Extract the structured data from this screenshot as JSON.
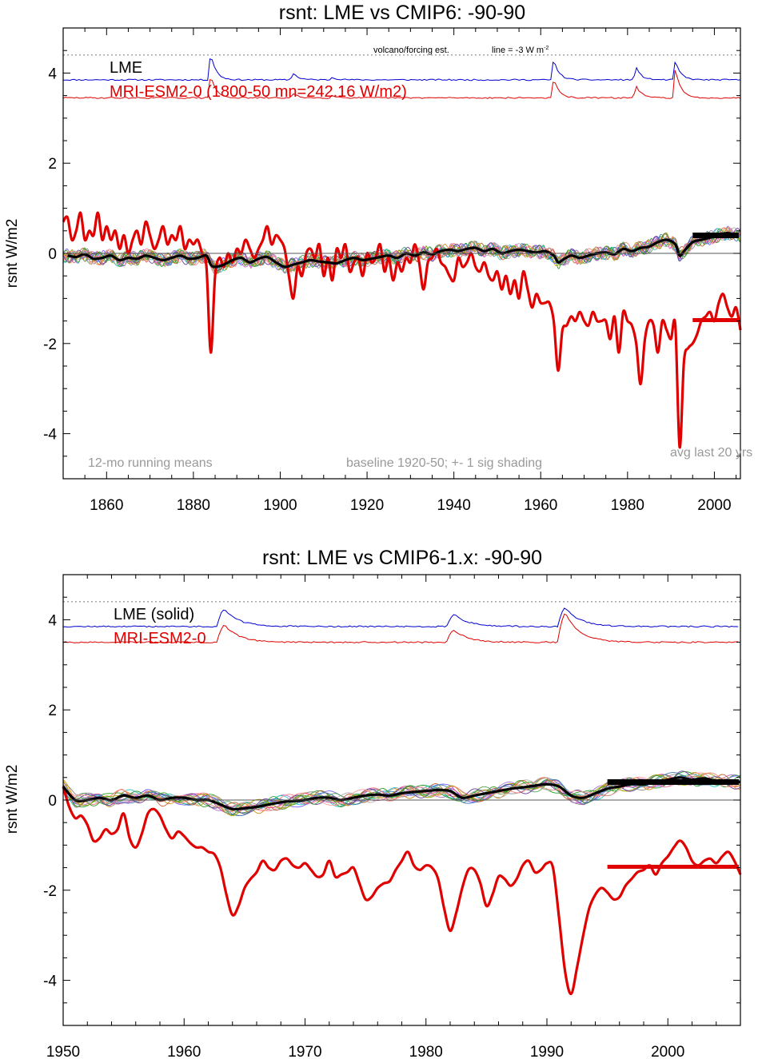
{
  "colors": {
    "lme": "#000000",
    "mri": "#e00000",
    "blue_forcing": "#0000d0",
    "red_forcing": "#e00000",
    "annotation_gray": "#999999",
    "zero_line": "#555555",
    "ensemble": [
      "#8a8a8a",
      "#1fa01f",
      "#b070d0",
      "#20c8c8",
      "#d09010",
      "#7060ff",
      "#e040a0",
      "#b0b0b0",
      "#50a050",
      "#c06030",
      "#4080c0",
      "#a0a000",
      "#ff7f7f",
      "#6a3d9a",
      "#33a02c",
      "#fb9a99",
      "#999999",
      "#e6c800",
      "#00a0a0",
      "#a05020"
    ]
  },
  "chart_data": [
    {
      "type": "line",
      "title": "rsnt: LME vs CMIP6: -90-90",
      "ylabel": "rsnt W/m2",
      "xlabel": "",
      "xlim": [
        1850,
        2006
      ],
      "ylim": [
        -5,
        5
      ],
      "xticks": [
        1860,
        1880,
        1900,
        1920,
        1940,
        1960,
        1980,
        2000
      ],
      "yticks": [
        -4,
        -2,
        0,
        2,
        4
      ],
      "grid": false,
      "legend": {
        "placement": "top-left",
        "entries": [
          "LME",
          "MRI-ESM2-0 (1800-50 mn=242.16 W/m2)"
        ]
      },
      "annotations": {
        "volcano": "volcano/forcing est.",
        "line_note": "line = -3 W m",
        "line_note_sup": "-2",
        "running_means": "12-mo running means",
        "baseline": "baseline 1920-50; +- 1 sig shading",
        "avg_last": "avg last 20 yrs"
      },
      "series": [
        {
          "name": "LME",
          "role": "ensemble-mean",
          "x": [
            1851,
            1853,
            1855,
            1857,
            1859,
            1861,
            1863,
            1865,
            1867,
            1869,
            1871,
            1873,
            1875,
            1877,
            1879,
            1881,
            1883,
            1884,
            1885,
            1887,
            1889,
            1891,
            1893,
            1895,
            1897,
            1899,
            1901,
            1903,
            1905,
            1907,
            1909,
            1911,
            1913,
            1915,
            1917,
            1919,
            1921,
            1923,
            1925,
            1927,
            1929,
            1931,
            1933,
            1935,
            1937,
            1939,
            1941,
            1943,
            1945,
            1947,
            1949,
            1951,
            1953,
            1955,
            1957,
            1959,
            1961,
            1963,
            1964,
            1965,
            1967,
            1969,
            1971,
            1973,
            1975,
            1977,
            1979,
            1981,
            1983,
            1985,
            1987,
            1989,
            1991,
            1992,
            1993,
            1995,
            1997,
            1999,
            2001,
            2003,
            2005
          ],
          "y": [
            -0.05,
            -0.08,
            -0.02,
            -0.12,
            -0.1,
            -0.05,
            -0.15,
            -0.1,
            -0.12,
            -0.05,
            -0.1,
            -0.15,
            -0.1,
            -0.05,
            -0.12,
            -0.1,
            -0.05,
            -0.25,
            -0.3,
            -0.25,
            -0.15,
            -0.1,
            -0.2,
            -0.12,
            -0.08,
            -0.2,
            -0.3,
            -0.25,
            -0.2,
            -0.15,
            -0.18,
            -0.2,
            -0.22,
            -0.15,
            -0.1,
            -0.15,
            -0.12,
            -0.08,
            -0.05,
            -0.1,
            0.0,
            -0.05,
            0.02,
            -0.02,
            0.05,
            0.08,
            0.05,
            0.1,
            0.12,
            0.05,
            0.1,
            0.0,
            0.05,
            0.08,
            0.05,
            0.02,
            0.05,
            -0.05,
            -0.2,
            -0.15,
            -0.05,
            -0.1,
            -0.05,
            0.0,
            0.02,
            -0.02,
            0.1,
            0.05,
            0.12,
            0.15,
            0.25,
            0.3,
            0.2,
            -0.05,
            0.05,
            0.25,
            0.3,
            0.35,
            0.4,
            0.45,
            0.4
          ]
        },
        {
          "name": "MRI-ESM2-0 (1800-50 mn=242.16 W/m2)",
          "role": "model",
          "x": [
            1850,
            1851,
            1852,
            1853,
            1854,
            1855,
            1856,
            1857,
            1858,
            1859,
            1860,
            1861,
            1862,
            1863,
            1864,
            1865,
            1866,
            1867,
            1868,
            1869,
            1870,
            1871,
            1872,
            1873,
            1874,
            1875,
            1876,
            1877,
            1878,
            1879,
            1880,
            1881,
            1882,
            1883,
            1884,
            1885,
            1886,
            1887,
            1888,
            1889,
            1890,
            1891,
            1892,
            1893,
            1894,
            1895,
            1896,
            1897,
            1898,
            1899,
            1900,
            1901,
            1902,
            1903,
            1904,
            1905,
            1906,
            1907,
            1908,
            1909,
            1910,
            1911,
            1912,
            1913,
            1914,
            1915,
            1916,
            1917,
            1918,
            1919,
            1920,
            1921,
            1922,
            1923,
            1924,
            1925,
            1926,
            1927,
            1928,
            1929,
            1930,
            1931,
            1932,
            1933,
            1934,
            1935,
            1936,
            1937,
            1938,
            1939,
            1940,
            1941,
            1942,
            1943,
            1944,
            1945,
            1946,
            1947,
            1948,
            1949,
            1950,
            1951,
            1952,
            1953,
            1954,
            1955,
            1956,
            1957,
            1958,
            1959,
            1960,
            1961,
            1962,
            1963,
            1964,
            1965,
            1966,
            1967,
            1968,
            1969,
            1970,
            1971,
            1972,
            1973,
            1974,
            1975,
            1976,
            1977,
            1978,
            1979,
            1980,
            1981,
            1982,
            1983,
            1984,
            1985,
            1986,
            1987,
            1988,
            1989,
            1990,
            1991,
            1992,
            1993,
            1994,
            1995,
            1996,
            1997,
            1998,
            1999,
            2000,
            2001,
            2002,
            2003,
            2004,
            2005,
            2006
          ],
          "y": [
            0.7,
            0.8,
            0.3,
            0.5,
            0.9,
            0.3,
            0.5,
            0.4,
            0.9,
            0.3,
            0.6,
            0.3,
            0.5,
            0.1,
            0.4,
            0.0,
            0.3,
            0.5,
            0.2,
            0.7,
            0.4,
            0.1,
            0.3,
            0.6,
            0.2,
            0.4,
            0.3,
            0.6,
            0.1,
            0.3,
            0.2,
            0.3,
            0.0,
            -0.3,
            -2.2,
            -0.5,
            -0.1,
            -0.3,
            0.0,
            -0.2,
            0.1,
            0.0,
            0.3,
            0.1,
            -0.1,
            0.1,
            0.3,
            0.6,
            0.2,
            0.4,
            0.3,
            0.1,
            -0.5,
            -1.0,
            -0.3,
            -0.5,
            0.0,
            0.1,
            -0.1,
            0.2,
            -0.5,
            -0.1,
            -0.6,
            0.1,
            -0.1,
            0.2,
            -0.4,
            -0.2,
            -0.1,
            -0.5,
            0.0,
            -0.2,
            -0.1,
            0.2,
            -0.4,
            -0.1,
            -0.6,
            -0.2,
            -0.4,
            -0.1,
            -0.2,
            0.2,
            -0.2,
            -0.8,
            -0.2,
            -0.1,
            0.1,
            -0.2,
            -0.3,
            -0.5,
            -0.6,
            -0.1,
            -0.3,
            -0.2,
            0.0,
            -0.3,
            -0.4,
            -0.2,
            -0.5,
            -0.6,
            -0.4,
            -0.8,
            -0.5,
            -0.9,
            -0.6,
            -1.0,
            -0.4,
            -0.8,
            -1.2,
            -0.9,
            -1.1,
            -1.1,
            -1.1,
            -1.5,
            -2.6,
            -1.7,
            -1.6,
            -1.4,
            -1.5,
            -1.3,
            -1.5,
            -1.6,
            -1.3,
            -1.5,
            -1.5,
            -1.5,
            -1.9,
            -1.4,
            -2.2,
            -1.3,
            -1.5,
            -1.6,
            -2.0,
            -2.9,
            -1.9,
            -1.5,
            -1.6,
            -2.2,
            -1.5,
            -1.7,
            -1.9,
            -1.6,
            -4.3,
            -2.4,
            -2.1,
            -2.0,
            -1.8,
            -1.5,
            -1.4,
            -1.3,
            -1.5,
            -1.1,
            -0.9,
            -1.2,
            -1.4,
            -1.2,
            -1.7
          ],
          "smooth": 0.0
        }
      ],
      "ensemble_count": 16,
      "avg_last_20yrs": {
        "LME": 0.4,
        "MRI-ESM2-0": -1.48,
        "start": 1995,
        "end": 2006
      },
      "forcing_est": {
        "baseline_dotted": 4.4,
        "blue_base": 3.85,
        "red_base": 3.45,
        "events": [
          {
            "year": 1884,
            "blue": 4.82,
            "red": 4.3
          },
          {
            "year": 1903,
            "blue": 4.1,
            "red": 3.6
          },
          {
            "year": 1912,
            "blue": 3.95,
            "red": 3.55
          },
          {
            "year": 1963,
            "blue": 4.6,
            "red": 4.15
          },
          {
            "year": 1982,
            "blue": 4.3,
            "red": 3.9
          },
          {
            "year": 1991,
            "blue": 4.55,
            "red": 4.55
          }
        ]
      }
    },
    {
      "type": "line",
      "title": "rsnt: LME vs CMIP6-1.x: -90-90",
      "ylabel": "rsnt W/m2",
      "xlabel": "",
      "xlim": [
        1950,
        2006
      ],
      "ylim": [
        -5,
        5
      ],
      "xticks": [
        1950,
        1960,
        1970,
        1980,
        1990,
        2000
      ],
      "yticks": [
        -4,
        -2,
        0,
        2,
        4
      ],
      "grid": false,
      "legend": {
        "placement": "top-left",
        "entries": [
          "LME (solid)",
          "MRI-ESM2-0"
        ]
      },
      "series": [
        {
          "name": "LME (solid)",
          "role": "ensemble-mean",
          "x": [
            1950,
            1951,
            1952,
            1953,
            1954,
            1955,
            1956,
            1957,
            1958,
            1959,
            1960,
            1961,
            1962,
            1963,
            1964,
            1965,
            1966,
            1967,
            1968,
            1969,
            1970,
            1971,
            1972,
            1973,
            1974,
            1975,
            1976,
            1977,
            1978,
            1979,
            1980,
            1981,
            1982,
            1983,
            1984,
            1985,
            1986,
            1987,
            1988,
            1989,
            1990,
            1991,
            1992,
            1993,
            1994,
            1995,
            1996,
            1997,
            1998,
            1999,
            2000,
            2001,
            2002,
            2003,
            2004,
            2005,
            2006
          ],
          "y": [
            0.3,
            0.0,
            0.0,
            0.05,
            0.0,
            0.1,
            0.05,
            0.1,
            0.0,
            0.05,
            0.05,
            0.0,
            0.0,
            -0.1,
            -0.2,
            -0.18,
            -0.15,
            -0.1,
            -0.05,
            -0.02,
            0.0,
            0.05,
            0.05,
            0.0,
            0.05,
            0.1,
            0.12,
            0.1,
            0.15,
            0.18,
            0.2,
            0.22,
            0.2,
            0.05,
            0.1,
            0.15,
            0.2,
            0.25,
            0.28,
            0.32,
            0.35,
            0.3,
            0.1,
            0.05,
            0.15,
            0.25,
            0.3,
            0.35,
            0.35,
            0.4,
            0.45,
            0.5,
            0.45,
            0.48,
            0.42,
            0.4,
            0.4
          ]
        },
        {
          "name": "MRI-ESM2-0",
          "role": "model",
          "x": [
            1950,
            1950.5,
            1951,
            1951.5,
            1952,
            1952.5,
            1953,
            1953.5,
            1954,
            1954.5,
            1955,
            1955.5,
            1956,
            1956.5,
            1957,
            1957.5,
            1958,
            1958.5,
            1959,
            1959.5,
            1960,
            1960.5,
            1961,
            1961.5,
            1962,
            1962.5,
            1963,
            1963.5,
            1964,
            1964.5,
            1965,
            1965.5,
            1966,
            1966.5,
            1967,
            1967.5,
            1968,
            1968.5,
            1969,
            1969.5,
            1970,
            1970.5,
            1971,
            1971.5,
            1972,
            1972.5,
            1973,
            1973.5,
            1974,
            1974.5,
            1975,
            1975.5,
            1976,
            1976.5,
            1977,
            1977.5,
            1978,
            1978.5,
            1979,
            1979.5,
            1980,
            1980.5,
            1981,
            1981.5,
            1982,
            1982.5,
            1983,
            1983.5,
            1984,
            1984.5,
            1985,
            1985.5,
            1986,
            1986.5,
            1987,
            1987.5,
            1988,
            1988.5,
            1989,
            1989.5,
            1990,
            1990.5,
            1991,
            1991.5,
            1992,
            1992.5,
            1993,
            1993.5,
            1994,
            1994.5,
            1995,
            1995.5,
            1996,
            1996.5,
            1997,
            1997.5,
            1998,
            1998.5,
            1999,
            1999.5,
            2000,
            2000.5,
            2001,
            2001.5,
            2002,
            2002.5,
            2003,
            2003.5,
            2004,
            2004.5,
            2005,
            2005.5,
            2006
          ],
          "y": [
            0.3,
            -0.15,
            -0.4,
            -0.35,
            -0.55,
            -0.9,
            -0.85,
            -0.65,
            -0.75,
            -0.65,
            -0.3,
            -0.85,
            -1.05,
            -0.75,
            -0.3,
            -0.2,
            -0.35,
            -0.65,
            -0.85,
            -0.7,
            -0.8,
            -0.95,
            -1.05,
            -1.05,
            -1.15,
            -1.2,
            -1.5,
            -2.1,
            -2.55,
            -2.35,
            -1.95,
            -1.75,
            -1.6,
            -1.35,
            -1.5,
            -1.55,
            -1.35,
            -1.3,
            -1.45,
            -1.5,
            -1.4,
            -1.55,
            -1.7,
            -1.65,
            -1.35,
            -1.7,
            -1.65,
            -1.6,
            -1.5,
            -1.85,
            -2.2,
            -2.15,
            -1.95,
            -1.85,
            -1.8,
            -1.55,
            -1.35,
            -1.15,
            -1.45,
            -1.55,
            -1.45,
            -1.5,
            -1.75,
            -2.4,
            -2.9,
            -2.5,
            -1.95,
            -1.55,
            -1.55,
            -1.85,
            -2.35,
            -2.1,
            -1.7,
            -1.75,
            -1.9,
            -1.75,
            -1.45,
            -1.35,
            -1.6,
            -1.55,
            -1.4,
            -1.5,
            -2.6,
            -3.8,
            -4.3,
            -3.7,
            -3.0,
            -2.4,
            -2.1,
            -1.95,
            -2.05,
            -2.2,
            -2.15,
            -1.9,
            -1.75,
            -1.6,
            -1.55,
            -1.45,
            -1.65,
            -1.4,
            -1.25,
            -1.05,
            -0.9,
            -1.05,
            -1.35,
            -1.45,
            -1.35,
            -1.3,
            -1.4,
            -1.25,
            -1.15,
            -1.35,
            -1.65
          ]
        }
      ],
      "ensemble_count": 16,
      "avg_last_20yrs": {
        "LME": 0.4,
        "MRI-ESM2-0": -1.48,
        "start": 1995,
        "end": 2006
      },
      "forcing_est": {
        "baseline_dotted": 4.4,
        "blue_base": 3.85,
        "red_base": 3.5,
        "events": [
          {
            "year": 1963.3,
            "blue": 4.5,
            "red": 4.15
          },
          {
            "year": 1982.3,
            "blue": 4.3,
            "red": 3.95
          },
          {
            "year": 1991.5,
            "blue": 4.55,
            "red": 4.6
          }
        ]
      }
    }
  ]
}
